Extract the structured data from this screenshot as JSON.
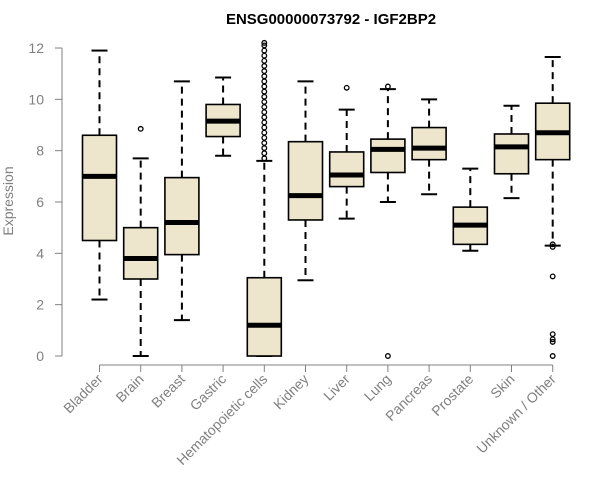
{
  "chart_data": {
    "type": "boxplot",
    "title": "ENSG00000073792 - IGF2BP2",
    "xlabel": "",
    "ylabel": "Expression",
    "ylim": [
      0,
      12
    ],
    "yticks": [
      "0",
      "2",
      "4",
      "6",
      "8",
      "10",
      "12"
    ],
    "grid": false,
    "colors": {
      "box_fill": "#ede6cc",
      "box_stroke": "#000000",
      "axis": "#808080"
    },
    "categories": [
      "Bladder",
      "Brain",
      "Breast",
      "Gastric",
      "Hematopoietic cells",
      "Kidney",
      "Liver",
      "Lung",
      "Pancreas",
      "Prostate",
      "Skin",
      "Unknown / Other"
    ],
    "boxes": [
      {
        "name": "Bladder",
        "whisker_low": 2.2,
        "q1": 4.5,
        "median": 7.0,
        "q3": 8.6,
        "whisker_high": 11.9,
        "outliers": []
      },
      {
        "name": "Brain",
        "whisker_low": 0.0,
        "q1": 3.0,
        "median": 3.8,
        "q3": 5.0,
        "whisker_high": 7.7,
        "outliers": [
          8.85
        ]
      },
      {
        "name": "Breast",
        "whisker_low": 1.4,
        "q1": 3.95,
        "median": 5.2,
        "q3": 6.95,
        "whisker_high": 10.7,
        "outliers": []
      },
      {
        "name": "Gastric",
        "whisker_low": 7.8,
        "q1": 8.55,
        "median": 9.15,
        "q3": 9.8,
        "whisker_high": 10.85,
        "outliers": []
      },
      {
        "name": "Hematopoietic cells",
        "whisker_low": 0.0,
        "q1": 0.0,
        "median": 1.2,
        "q3": 3.05,
        "whisker_high": 7.6,
        "outliers": [
          7.7,
          7.9,
          8.1,
          8.3,
          8.5,
          8.7,
          8.9,
          9.1,
          9.3,
          9.5,
          9.7,
          9.9,
          10.1,
          10.3,
          10.5,
          10.7,
          10.9,
          11.1,
          11.3,
          11.5,
          11.7,
          11.9,
          12.1,
          12.2
        ]
      },
      {
        "name": "Kidney",
        "whisker_low": 2.95,
        "q1": 5.3,
        "median": 6.25,
        "q3": 8.35,
        "whisker_high": 10.7,
        "outliers": []
      },
      {
        "name": "Liver",
        "whisker_low": 5.35,
        "q1": 6.6,
        "median": 7.05,
        "q3": 7.95,
        "whisker_high": 9.6,
        "outliers": [
          10.45
        ]
      },
      {
        "name": "Lung",
        "whisker_low": 6.0,
        "q1": 7.15,
        "median": 8.05,
        "q3": 8.45,
        "whisker_high": 10.4,
        "outliers": [
          10.5,
          0.0
        ]
      },
      {
        "name": "Pancreas",
        "whisker_low": 6.3,
        "q1": 7.65,
        "median": 8.1,
        "q3": 8.9,
        "whisker_high": 10.0,
        "outliers": []
      },
      {
        "name": "Prostate",
        "whisker_low": 4.1,
        "q1": 4.35,
        "median": 5.1,
        "q3": 5.8,
        "whisker_high": 7.3,
        "outliers": []
      },
      {
        "name": "Skin",
        "whisker_low": 6.15,
        "q1": 7.1,
        "median": 8.15,
        "q3": 8.65,
        "whisker_high": 9.75,
        "outliers": []
      },
      {
        "name": "Unknown / Other",
        "whisker_low": 4.3,
        "q1": 7.65,
        "median": 8.7,
        "q3": 9.85,
        "whisker_high": 11.65,
        "outliers": [
          4.35,
          4.25,
          3.1,
          0.85,
          0.65,
          0.55,
          0.0
        ]
      }
    ]
  }
}
